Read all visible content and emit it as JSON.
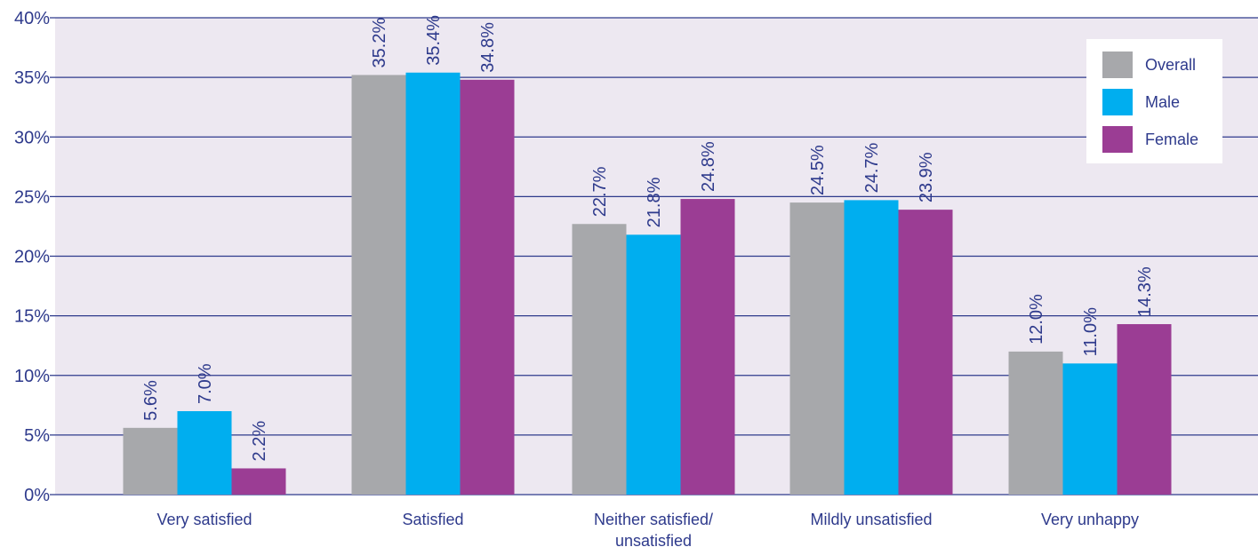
{
  "chart_data": {
    "type": "bar",
    "title": "",
    "xlabel": "",
    "ylabel": "",
    "ylim": [
      0,
      40
    ],
    "yticks": [
      0,
      5,
      10,
      15,
      20,
      25,
      30,
      35,
      40
    ],
    "ytick_labels": [
      "0%",
      "5%",
      "10%",
      "15%",
      "20%",
      "25%",
      "30%",
      "35%",
      "40%"
    ],
    "grid": true,
    "legend_position": "top-right",
    "categories": [
      [
        "Very satisfied"
      ],
      [
        "Satisfied"
      ],
      [
        "Neither satisfied/",
        "unsatisfied"
      ],
      [
        "Mildly unsatisfied"
      ],
      [
        "Very unhappy"
      ]
    ],
    "series": [
      {
        "name": "Overall",
        "color": "#a7a8ab",
        "values": [
          5.6,
          35.2,
          22.7,
          24.5,
          12.0
        ],
        "labels": [
          "5.6%",
          "35.2%",
          "22.7%",
          "24.5%",
          "12.0%"
        ]
      },
      {
        "name": "Male",
        "color": "#00aeef",
        "values": [
          7.0,
          35.4,
          21.8,
          24.7,
          11.0
        ],
        "labels": [
          "7.0%",
          "35.4%",
          "21.8%",
          "24.7%",
          "11.0%"
        ]
      },
      {
        "name": "Female",
        "color": "#9b3d94",
        "values": [
          2.2,
          34.8,
          24.8,
          23.9,
          14.3
        ],
        "labels": [
          "2.2%",
          "34.8%",
          "24.8%",
          "23.9%",
          "14.3%"
        ]
      }
    ],
    "colors": {
      "plot_background": "#ede8f1",
      "grid_line": "#2e3a8c",
      "text": "#2e3a8c"
    }
  }
}
